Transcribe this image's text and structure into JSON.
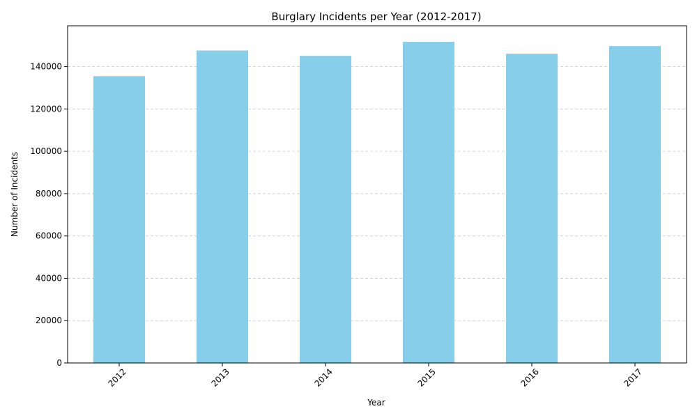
{
  "chart_data": {
    "type": "bar",
    "title": "Burglary Incidents per Year (2012-2017)",
    "xlabel": "Year",
    "ylabel": "Number of Incidents",
    "categories": [
      "2012",
      "2013",
      "2014",
      "2015",
      "2016",
      "2017"
    ],
    "values": [
      135500,
      147600,
      145100,
      151700,
      146100,
      149700
    ],
    "ylim": [
      0,
      159290
    ],
    "yticks": [
      0,
      20000,
      40000,
      60000,
      80000,
      100000,
      120000,
      140000
    ],
    "grid": "y-dashed",
    "x_tick_rotation": "45-degrees",
    "bar_color": "#87CEEB",
    "legend": "none"
  }
}
